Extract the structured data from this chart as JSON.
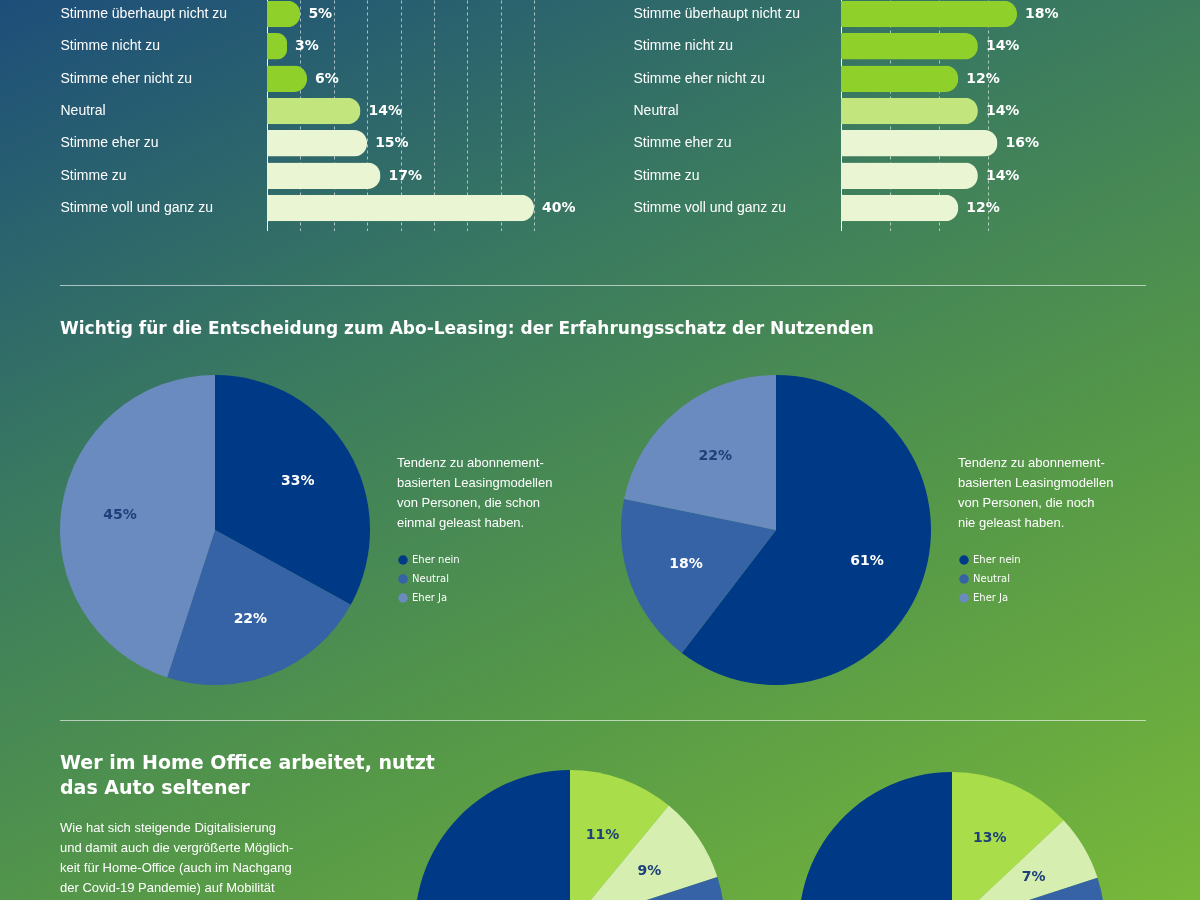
{
  "chart_data": [
    {
      "type": "bar",
      "orientation": "horizontal",
      "categories": [
        "Stimme überhaupt nicht zu",
        "Stimme nicht zu",
        "Stimme eher nicht zu",
        "Neutral",
        "Stimme eher zu",
        "Stimme zu",
        "Stimme voll und ganz zu"
      ],
      "values": [
        5,
        3,
        6,
        14,
        15,
        17,
        40
      ],
      "colors": [
        "#8fd12a",
        "#8fd12a",
        "#8fd12a",
        "#c3e57e",
        "#eaf5d4",
        "#eaf5d4",
        "#eaf5d4"
      ],
      "value_labels": [
        "5%",
        "3%",
        "6%",
        "14%",
        "15%",
        "17%",
        "40%"
      ],
      "grid": "x",
      "tick_labels": "y"
    },
    {
      "type": "bar",
      "orientation": "horizontal",
      "categories": [
        "Stimme überhaupt nicht zu",
        "Stimme nicht zu",
        "Stimme eher nicht zu",
        "Neutral",
        "Stimme eher zu",
        "Stimme zu",
        "Stimme voll und ganz zu"
      ],
      "values": [
        18,
        14,
        12,
        14,
        16,
        14,
        12
      ],
      "colors": [
        "#8fd12a",
        "#8fd12a",
        "#8fd12a",
        "#c3e57e",
        "#eaf5d4",
        "#eaf5d4",
        "#eaf5d4"
      ],
      "value_labels": [
        "18%",
        "14%",
        "12%",
        "14%",
        "16%",
        "14%",
        "12%"
      ],
      "grid": "x",
      "tick_labels": "y"
    },
    {
      "type": "pie",
      "title": "Wichtig für die Entscheidung zum Abo-Leasing: der Erfahrungsschatz der Nutzenden",
      "categories": [
        "Eher nein",
        "Neutral",
        "Eher Ja"
      ],
      "values": [
        33,
        22,
        45
      ],
      "colors": [
        "#003a87",
        "#3563a5",
        "#6a8bbf"
      ],
      "value_labels": [
        "33%",
        "22%",
        "45%"
      ],
      "legend": "right",
      "annotations": [
        "Tendenz zu abonnement-\nbasierten Leasingmodellen\nvon Personen, die schon\neinmal geleast haben."
      ]
    },
    {
      "type": "pie",
      "categories": [
        "Eher nein",
        "Neutral",
        "Eher Ja"
      ],
      "values": [
        61,
        18,
        22
      ],
      "colors": [
        "#003a87",
        "#3563a5",
        "#6a8bbf"
      ],
      "value_labels": [
        "61%",
        "18%",
        "22%"
      ],
      "legend": "right",
      "annotations": [
        "Tendenz zu abonnement-\nbasierten Leasingmodellen\nvon Personen, die noch\nnie geleast haben."
      ]
    },
    {
      "type": "pie",
      "title": "Wer im Home Office arbeitet, nutzt\ndas Auto seltener",
      "categories": [
        null,
        null,
        null,
        null
      ],
      "values": [
        11,
        9,
        22,
        58
      ],
      "colors": [
        "#a9dd4a",
        "#d6efb0",
        "#3563a5",
        "#003a87"
      ],
      "value_labels": [
        "11%",
        "9%",
        null,
        null
      ],
      "annotations": [
        "Wie hat sich steigende Digitalisierung\nund damit auch die vergrößerte Möglich-\nkeit für Home-Office (auch im Nachgang\nder Covid-19 Pandemie) auf Mobilität"
      ]
    },
    {
      "type": "pie",
      "categories": [
        null,
        null,
        null,
        null
      ],
      "values": [
        13,
        7,
        20,
        60
      ],
      "colors": [
        "#a9dd4a",
        "#d6efb0",
        "#3563a5",
        "#003a87"
      ],
      "value_labels": [
        "13%",
        "7%",
        null,
        null
      ]
    }
  ]
}
